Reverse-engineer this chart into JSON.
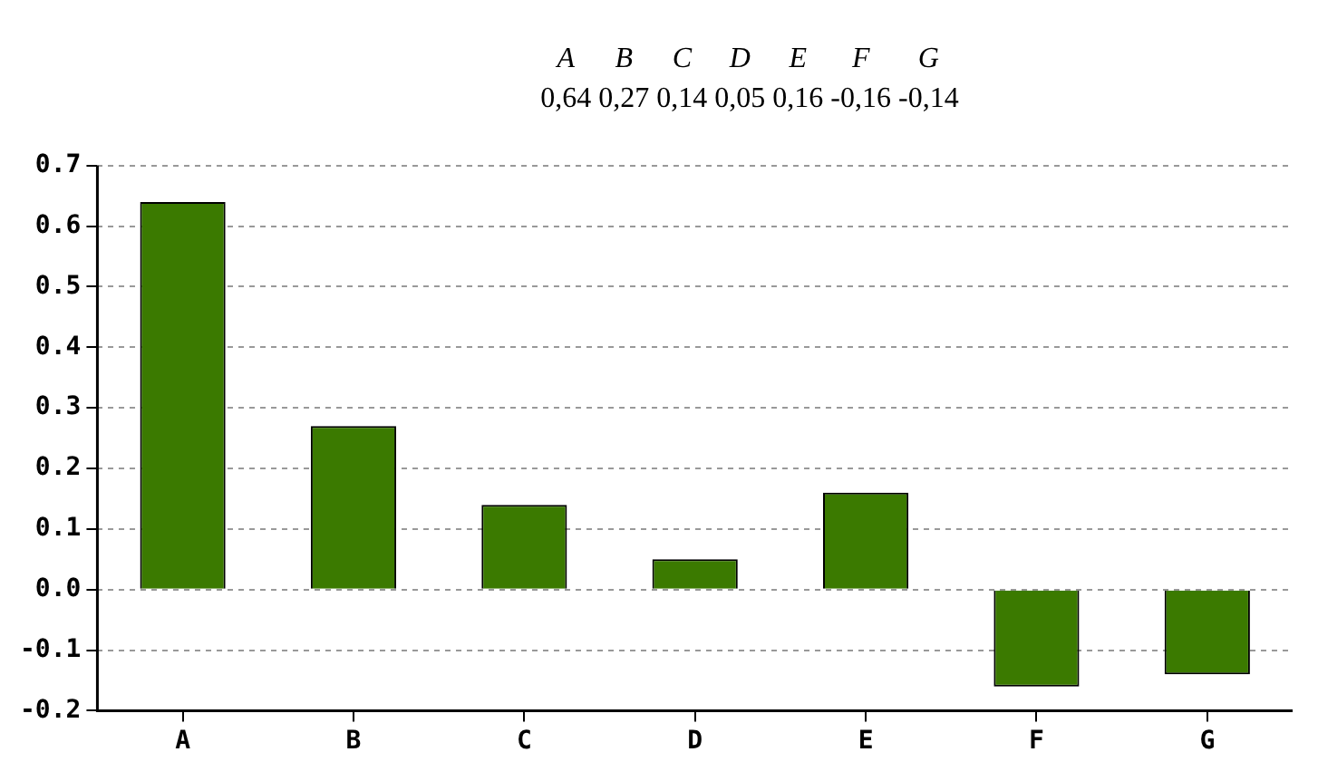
{
  "chart_data": {
    "type": "bar",
    "categories": [
      "A",
      "B",
      "C",
      "D",
      "E",
      "F",
      "G"
    ],
    "values": [
      0.64,
      0.27,
      0.14,
      0.05,
      0.16,
      -0.16,
      -0.14
    ],
    "annotations": [
      "A B C D E F G",
      "0,64 0,27 0,14 0,05 0,16 -0,16 -0,14"
    ],
    "color": "#3b7a00",
    "ylim": [
      -0.2,
      0.7
    ],
    "yticks": [
      -0.2,
      -0.1,
      {
        "value": 0,
        "label": "0.0"
      },
      0.1,
      0.2,
      0.3,
      0.4,
      0.5,
      0.6,
      0.7
    ],
    "grid": "y",
    "legend": false
  }
}
